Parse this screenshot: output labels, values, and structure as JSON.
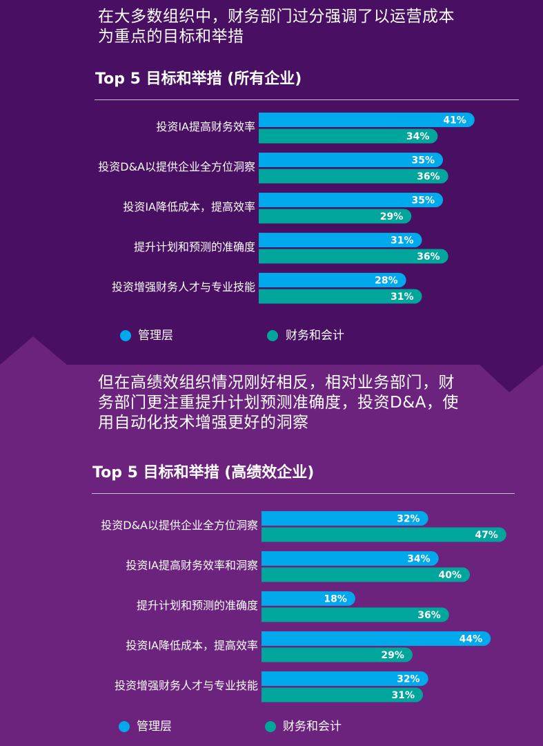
{
  "colors": {
    "bg_top": "#480f62",
    "bg_bottom": "#6c237e",
    "mgmt": "#00a8ec",
    "finance": "#00a69c"
  },
  "section1": {
    "headline_line1": "在大多数组织中，财务部门过分强调了以运营成本",
    "headline_line2": "为重点的目标和举措",
    "title": "Top 5 目标和举措 (所有企业)",
    "legend": [
      "管理层",
      "财务和会计"
    ]
  },
  "section2": {
    "headline_line1": "但在高绩效组织情况刚好相反，相对业务部门，财",
    "headline_line2": "务部门更注重提升计划预测准确度，投资D&A，使",
    "headline_line3": "用自动化技术增强更好的洞察",
    "title": "Top 5 目标和举措 (高绩效企业)",
    "legend": [
      "管理层",
      "财务和会计"
    ]
  },
  "chart_data": [
    {
      "type": "bar",
      "orientation": "horizontal",
      "title": "Top 5 目标和举措 (所有企业)",
      "categories": [
        "投资IA提高财务效率",
        "投资D&A以提供企业全方位洞察",
        "投资IA降低成本，提高效率",
        "提升计划和预测的准确度",
        "投资增强财务人才与专业技能"
      ],
      "series": [
        {
          "name": "管理层",
          "values": [
            41,
            35,
            35,
            31,
            28
          ]
        },
        {
          "name": "财务和会计",
          "values": [
            34,
            36,
            29,
            36,
            31
          ]
        }
      ],
      "unit": "%",
      "xlim": [
        0,
        50
      ],
      "legend_position": "bottom"
    },
    {
      "type": "bar",
      "orientation": "horizontal",
      "title": "Top 5 目标和举措 (高绩效企业)",
      "categories": [
        "投资D&A以提供企业全方位洞察",
        "投资IA提高财务效率和洞察",
        "提升计划和预测的准确度",
        "投资IA降低成本，提高效率",
        "投资增强财务人才与专业技能"
      ],
      "series": [
        {
          "name": "管理层",
          "values": [
            32,
            34,
            18,
            44,
            32
          ]
        },
        {
          "name": "财务和会计",
          "values": [
            47,
            40,
            36,
            29,
            31
          ]
        }
      ],
      "unit": "%",
      "xlim": [
        0,
        50
      ],
      "legend_position": "bottom"
    }
  ]
}
